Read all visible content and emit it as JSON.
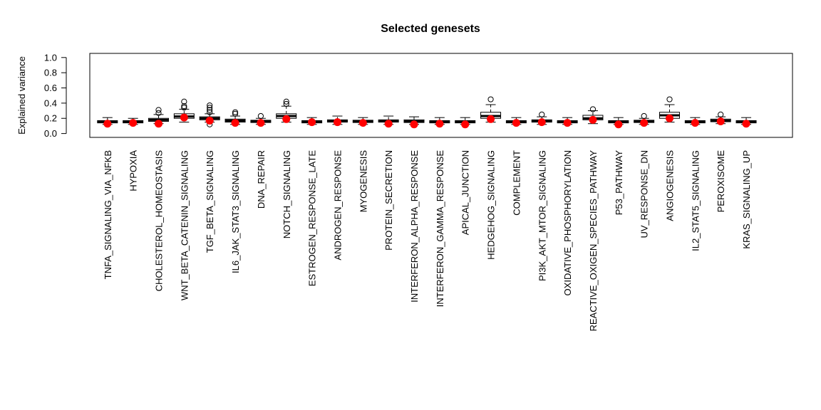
{
  "chart_data": {
    "type": "box",
    "title": "Selected genesets",
    "xlabel": "",
    "ylabel": "Explained variance",
    "ylim": [
      0,
      1.0
    ],
    "yticks": [
      "0.0",
      "0.2",
      "0.4",
      "0.6",
      "0.8",
      "1.0"
    ],
    "colors": {
      "box": "#000000",
      "highlight": "#ff0000",
      "background": "#ffffff"
    },
    "categories": [
      "TNFA_SIGNALING_VIA_NFKB",
      "HYPOXIA",
      "CHOLESTEROL_HOMEOSTASIS",
      "WNT_BETA_CATENIN_SIGNALING",
      "TGF_BETA_SIGNALING",
      "IL6_JAK_STAT3_SIGNALING",
      "DNA_REPAIR",
      "NOTCH_SIGNALING",
      "ESTROGEN_RESPONSE_LATE",
      "ANDROGEN_RESPONSE",
      "MYOGENESIS",
      "PROTEIN_SECRETION",
      "INTERFERON_ALPHA_RESPONSE",
      "INTERFERON_GAMMA_RESPONSE",
      "APICAL_JUNCTION",
      "HEDGEHOG_SIGNALING",
      "COMPLEMENT",
      "PI3K_AKT_MTOR_SIGNALING",
      "OXIDATIVE_PHOSPHORYLATION",
      "REACTIVE_OXIGEN_SPECIES_PATHWAY",
      "P53_PATHWAY",
      "UV_RESPONSE_DN",
      "ANGIOGENESIS",
      "IL2_STAT5_SIGNALING",
      "PEROXISOME",
      "KRAS_SIGNALING_UP"
    ],
    "boxes": [
      {
        "min": 0.12,
        "q1": 0.14,
        "median": 0.155,
        "q3": 0.17,
        "max": 0.21,
        "outliers": []
      },
      {
        "min": 0.12,
        "q1": 0.14,
        "median": 0.155,
        "q3": 0.17,
        "max": 0.2,
        "outliers": []
      },
      {
        "min": 0.13,
        "q1": 0.16,
        "median": 0.18,
        "q3": 0.2,
        "max": 0.25,
        "outliers": [
          0.27,
          0.31
        ]
      },
      {
        "min": 0.15,
        "q1": 0.2,
        "median": 0.225,
        "q3": 0.26,
        "max": 0.32,
        "outliers": [
          0.34,
          0.36,
          0.42
        ]
      },
      {
        "min": 0.15,
        "q1": 0.18,
        "median": 0.2,
        "q3": 0.22,
        "max": 0.26,
        "outliers": [
          0.12,
          0.28,
          0.31,
          0.34,
          0.37
        ]
      },
      {
        "min": 0.12,
        "q1": 0.15,
        "median": 0.17,
        "q3": 0.19,
        "max": 0.23,
        "outliers": [
          0.26,
          0.28
        ]
      },
      {
        "min": 0.12,
        "q1": 0.145,
        "median": 0.16,
        "q3": 0.175,
        "max": 0.2,
        "outliers": [
          0.23
        ]
      },
      {
        "min": 0.15,
        "q1": 0.2,
        "median": 0.23,
        "q3": 0.26,
        "max": 0.36,
        "outliers": [
          0.39,
          0.42
        ]
      },
      {
        "min": 0.12,
        "q1": 0.14,
        "median": 0.155,
        "q3": 0.17,
        "max": 0.21,
        "outliers": []
      },
      {
        "min": 0.12,
        "q1": 0.15,
        "median": 0.165,
        "q3": 0.18,
        "max": 0.23,
        "outliers": []
      },
      {
        "min": 0.12,
        "q1": 0.145,
        "median": 0.16,
        "q3": 0.175,
        "max": 0.21,
        "outliers": []
      },
      {
        "min": 0.12,
        "q1": 0.15,
        "median": 0.165,
        "q3": 0.18,
        "max": 0.23,
        "outliers": []
      },
      {
        "min": 0.12,
        "q1": 0.145,
        "median": 0.16,
        "q3": 0.18,
        "max": 0.22,
        "outliers": []
      },
      {
        "min": 0.12,
        "q1": 0.14,
        "median": 0.155,
        "q3": 0.17,
        "max": 0.21,
        "outliers": []
      },
      {
        "min": 0.12,
        "q1": 0.14,
        "median": 0.155,
        "q3": 0.17,
        "max": 0.21,
        "outliers": []
      },
      {
        "min": 0.15,
        "q1": 0.2,
        "median": 0.23,
        "q3": 0.28,
        "max": 0.38,
        "outliers": [
          0.45
        ]
      },
      {
        "min": 0.12,
        "q1": 0.14,
        "median": 0.155,
        "q3": 0.17,
        "max": 0.21,
        "outliers": []
      },
      {
        "min": 0.12,
        "q1": 0.15,
        "median": 0.165,
        "q3": 0.18,
        "max": 0.22,
        "outliers": [
          0.25
        ]
      },
      {
        "min": 0.12,
        "q1": 0.14,
        "median": 0.155,
        "q3": 0.17,
        "max": 0.21,
        "outliers": []
      },
      {
        "min": 0.13,
        "q1": 0.18,
        "median": 0.2,
        "q3": 0.24,
        "max": 0.3,
        "outliers": [
          0.32
        ]
      },
      {
        "min": 0.12,
        "q1": 0.14,
        "median": 0.155,
        "q3": 0.17,
        "max": 0.21,
        "outliers": []
      },
      {
        "min": 0.12,
        "q1": 0.145,
        "median": 0.16,
        "q3": 0.175,
        "max": 0.2,
        "outliers": [
          0.23
        ]
      },
      {
        "min": 0.15,
        "q1": 0.2,
        "median": 0.24,
        "q3": 0.28,
        "max": 0.38,
        "outliers": [
          0.45
        ]
      },
      {
        "min": 0.12,
        "q1": 0.14,
        "median": 0.155,
        "q3": 0.17,
        "max": 0.21,
        "outliers": []
      },
      {
        "min": 0.13,
        "q1": 0.155,
        "median": 0.17,
        "q3": 0.19,
        "max": 0.22,
        "outliers": [
          0.25
        ]
      },
      {
        "min": 0.12,
        "q1": 0.14,
        "median": 0.155,
        "q3": 0.17,
        "max": 0.21,
        "outliers": []
      }
    ],
    "highlight_points": [
      0.13,
      0.14,
      0.13,
      0.21,
      0.17,
      0.14,
      0.14,
      0.19,
      0.15,
      0.15,
      0.14,
      0.13,
      0.12,
      0.13,
      0.12,
      0.19,
      0.14,
      0.15,
      0.14,
      0.18,
      0.12,
      0.14,
      0.2,
      0.14,
      0.16,
      0.13
    ]
  }
}
